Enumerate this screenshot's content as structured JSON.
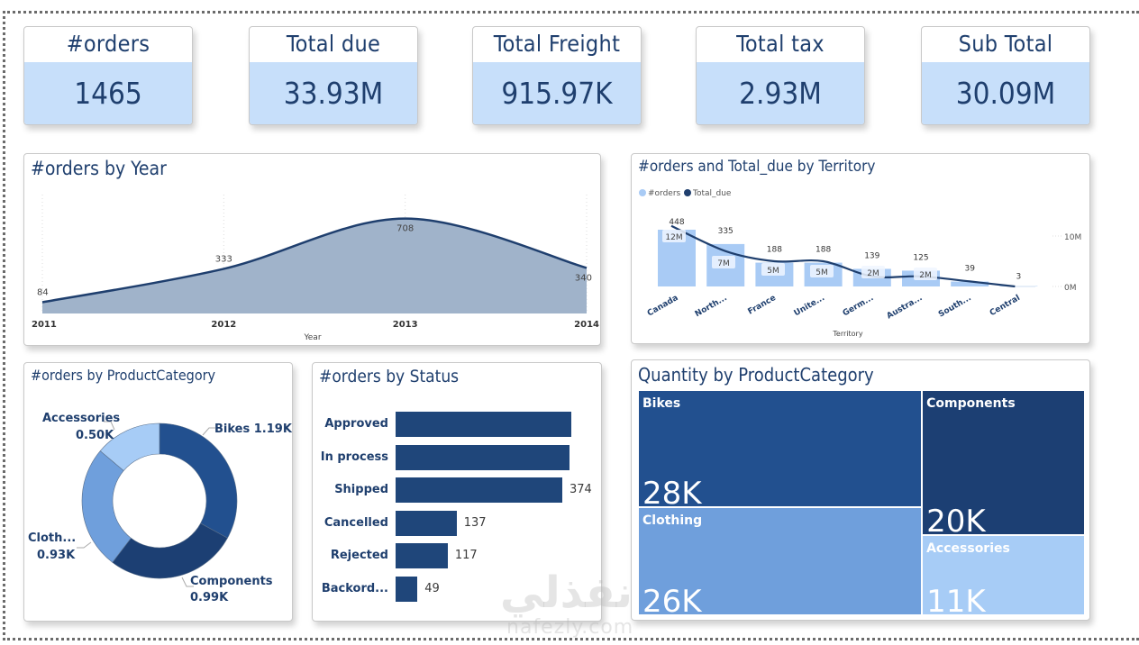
{
  "kpis": [
    {
      "label": "#orders",
      "value": "1465"
    },
    {
      "label": "Total due",
      "value": "33.93M"
    },
    {
      "label": "Total Freight",
      "value": "915.97K"
    },
    {
      "label": "Total tax",
      "value": "2.93M"
    },
    {
      "label": "Sub Total",
      "value": "30.09M"
    }
  ],
  "colors": {
    "title": "#1f3f6e",
    "kpi_fill": "#c7dffa",
    "area_fill": "#a0b3ca",
    "line_dark": "#1f3f6e",
    "bar_light": "#a9cbf5",
    "bar_dark": "#1f467a",
    "cat_bikes": "#22508f",
    "cat_components": "#1c3f73",
    "cat_clothing": "#6f9fdc",
    "cat_accessories": "#a7ccf6"
  },
  "watermark": {
    "arabic": "نفذلي",
    "latin": "nafezly.com"
  },
  "chart_data": [
    {
      "id": "orders_by_year",
      "type": "area",
      "title": "#orders by Year",
      "xlabel": "Year",
      "ylabel": "",
      "x": [
        "2011",
        "2012",
        "2013",
        "2014"
      ],
      "values": [
        84,
        333,
        708,
        340
      ],
      "data_labels": [
        "84",
        "333",
        "708",
        "340"
      ],
      "ylim": [
        0,
        800
      ],
      "grid": "vertical-dotted"
    },
    {
      "id": "orders_totaldue_by_territory",
      "type": "bar",
      "title": "#orders and Total_due by Territory",
      "xlabel": "Territory",
      "legend": [
        "#orders",
        "Total_due"
      ],
      "legend_position": "top-left",
      "categories": [
        "Canada",
        "North...",
        "France",
        "Unite...",
        "Germ...",
        "Austra...",
        "South...",
        "Central"
      ],
      "series": [
        {
          "name": "#orders",
          "kind": "bar",
          "values": [
            448,
            335,
            188,
            188,
            139,
            125,
            39,
            3
          ],
          "data_labels": [
            "448",
            "335",
            "188",
            "188",
            "139",
            "125",
            "39",
            "3"
          ]
        },
        {
          "name": "Total_due",
          "kind": "line",
          "values": [
            12,
            7,
            5,
            5,
            2,
            2,
            1,
            0
          ],
          "data_labels": [
            "12M",
            "7M",
            "5M",
            "5M",
            "2M",
            "2M",
            "",
            ""
          ]
        }
      ],
      "y2_ticks": [
        "10M",
        "0M"
      ],
      "y2lim": [
        0,
        14
      ]
    },
    {
      "id": "orders_by_productcategory",
      "type": "pie",
      "title": "#orders by ProductCategory",
      "donut": true,
      "slices": [
        {
          "name": "Bikes",
          "value": 1190,
          "label": "Bikes 1.19K"
        },
        {
          "name": "Components",
          "value": 990,
          "label_name": "Components",
          "label_value": "0.99K"
        },
        {
          "name": "Cloth...",
          "value": 930,
          "label_name": "Cloth...",
          "label_value": "0.93K"
        },
        {
          "name": "Accessories",
          "value": 500,
          "label_name": "Accessories",
          "label_value": "0.50K"
        }
      ]
    },
    {
      "id": "orders_by_status",
      "type": "bar",
      "orientation": "horizontal",
      "title": "#orders by Status",
      "categories": [
        "Approved",
        "In process",
        "Shipped",
        "Cancelled",
        "Rejected",
        "Backord..."
      ],
      "values": [
        394,
        390,
        374,
        137,
        117,
        49
      ],
      "data_labels": [
        "",
        "",
        "374",
        "137",
        "117",
        "49"
      ],
      "xlim": [
        0,
        400
      ]
    },
    {
      "id": "quantity_by_productcategory",
      "type": "heatmap",
      "subtype": "treemap",
      "title": "Quantity by ProductCategory",
      "items": [
        {
          "name": "Bikes",
          "value": 28000,
          "label": "28K"
        },
        {
          "name": "Clothing",
          "value": 26000,
          "label": "26K"
        },
        {
          "name": "Components",
          "value": 20000,
          "label": "20K"
        },
        {
          "name": "Accessories",
          "value": 11000,
          "label": "11K"
        }
      ]
    }
  ]
}
